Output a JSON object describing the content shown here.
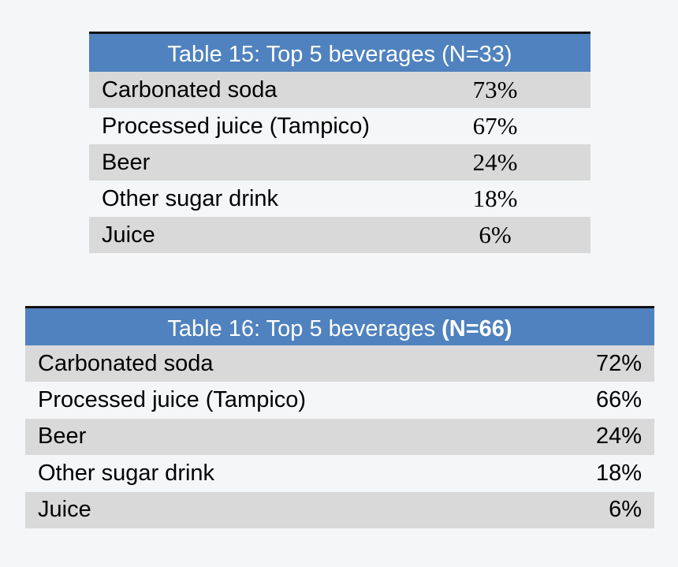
{
  "table15": {
    "title": "Table 15: Top 5 beverages (N=33)",
    "rows": [
      {
        "label": "Carbonated soda",
        "value": "73%"
      },
      {
        "label": "Processed juice (Tampico)",
        "value": "67%"
      },
      {
        "label": "Beer",
        "value": "24%"
      },
      {
        "label": "Other sugar drink",
        "value": "18%"
      },
      {
        "label": "Juice",
        "value": "6%"
      }
    ]
  },
  "table16": {
    "title_prefix": "Table 16: Top 5 beverages ",
    "title_bold": "(N=66)",
    "rows": [
      {
        "label": "Carbonated soda",
        "value": "72%"
      },
      {
        "label": "Processed juice (Tampico)",
        "value": "66%"
      },
      {
        "label": "Beer",
        "value": "24%"
      },
      {
        "label": "Other sugar drink",
        "value": "18%"
      },
      {
        "label": "Juice",
        "value": "6%"
      }
    ]
  },
  "colors": {
    "header_bg": "#4f82be",
    "header_text": "#ffffff",
    "row_shade": "#d9d9d9",
    "page_bg": "#f5f6f8"
  }
}
